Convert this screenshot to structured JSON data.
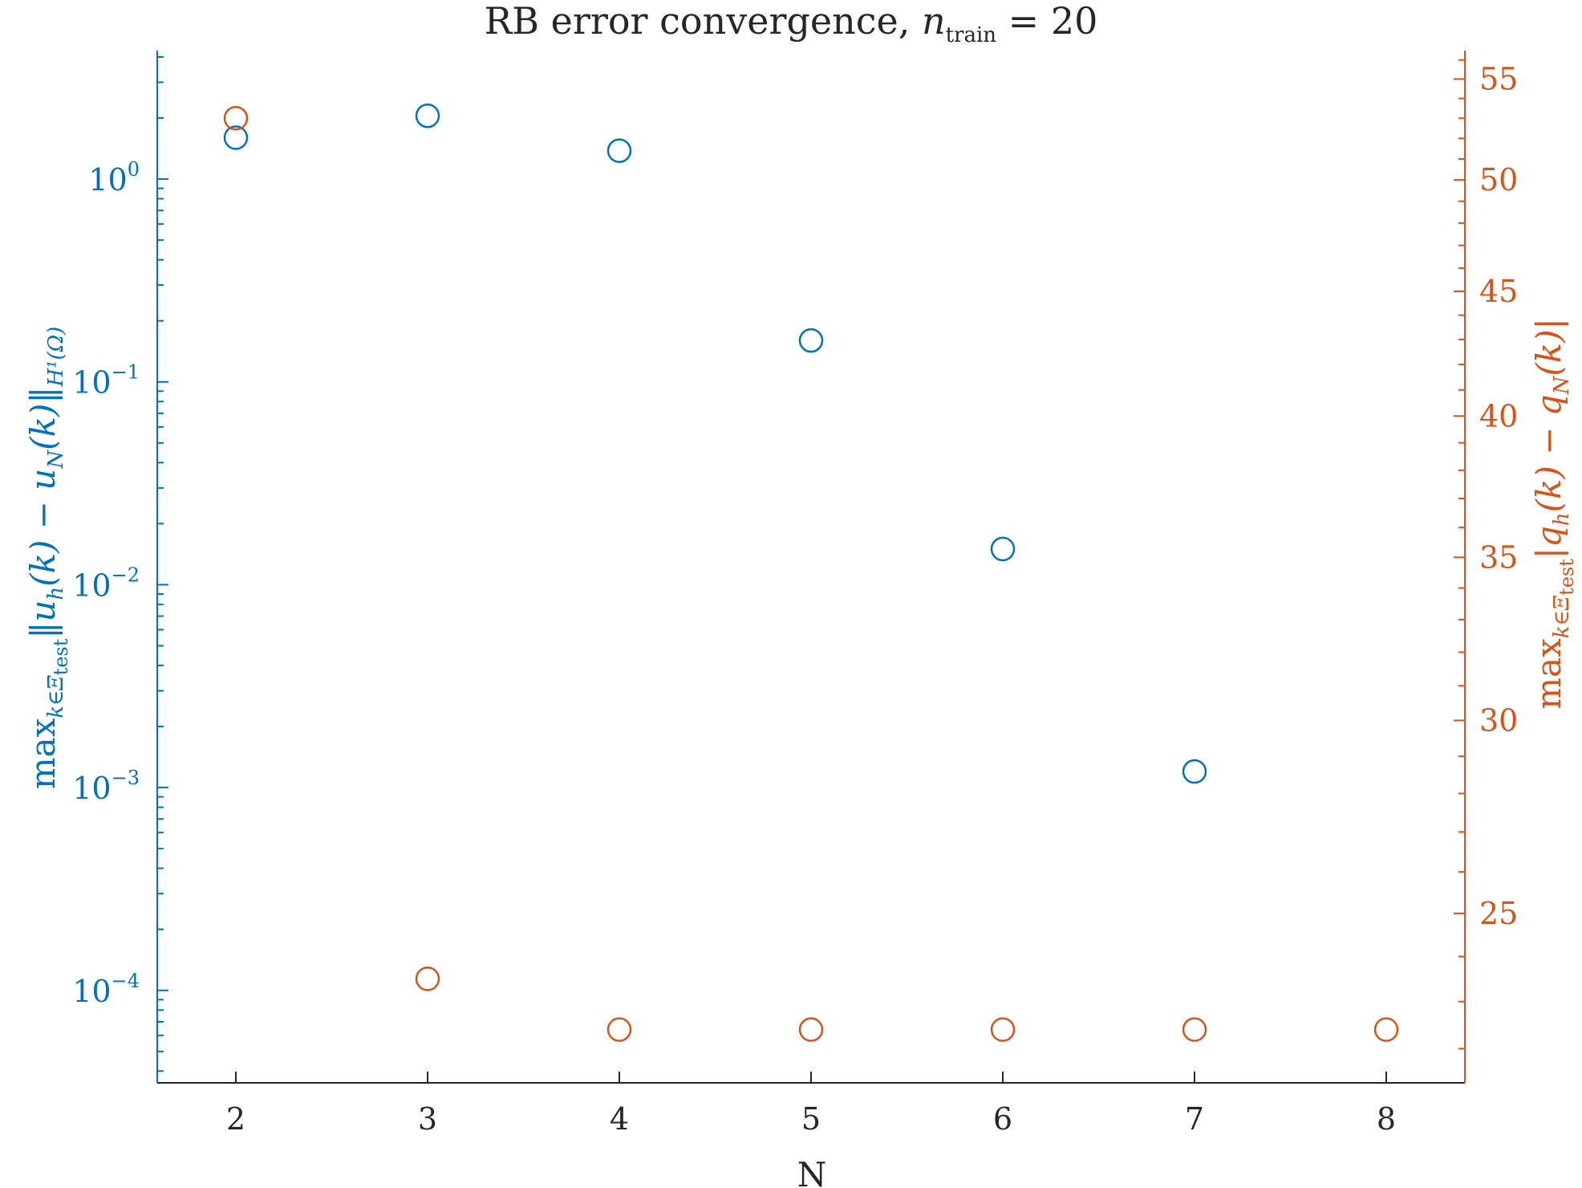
{
  "chart_data": {
    "type": "scatter",
    "title_main": "RB error convergence, ",
    "title_math_n": "n",
    "title_math_sub": "train",
    "title_math_rest": " = 20",
    "xlabel": "N",
    "x_ticks": [
      2,
      3,
      4,
      5,
      6,
      7,
      8
    ],
    "xlim": [
      1.59,
      8.41
    ],
    "left_axis": {
      "scale": "log",
      "ylim": [
        3.5e-05,
        4.3
      ],
      "color": "#0072BD",
      "tick_labels": [
        {
          "value": 1,
          "base": "10",
          "exp": "0"
        },
        {
          "value": 0.1,
          "base": "10",
          "exp": "−1"
        },
        {
          "value": 0.01,
          "base": "10",
          "exp": "−2"
        },
        {
          "value": 0.001,
          "base": "10",
          "exp": "−3"
        },
        {
          "value": 0.0001,
          "base": "10",
          "exp": "−4"
        }
      ],
      "label_max": "max",
      "label_sub": "k∈Ξ",
      "label_subsub": "test",
      "label_body": "‖u",
      "label_h": "h",
      "label_mid": "(k) − u",
      "label_N": "N",
      "label_end": "(k)‖",
      "label_norm": "H¹(Ω)"
    },
    "right_axis": {
      "scale": "log",
      "ylim": [
        21.3,
        56.5
      ],
      "color": "#D95319",
      "major_ticks": [
        25,
        30,
        35,
        40,
        45,
        50,
        55
      ],
      "tick_labels": [
        "25",
        "30",
        "35",
        "40",
        "45",
        "50",
        "55"
      ],
      "label_max": "max",
      "label_sub": "k∈Ξ",
      "label_subsub": "test",
      "label_body": "|q",
      "label_h": "h",
      "label_mid": "(k) − q",
      "label_N": "N",
      "label_end": "(k)|"
    },
    "series": [
      {
        "axis": "left",
        "marker": "circle-open",
        "color": "#0072BD",
        "x": [
          2,
          3,
          4,
          5,
          6,
          7
        ],
        "y": [
          1.6,
          2.05,
          1.38,
          0.16,
          0.015,
          0.0012
        ]
      },
      {
        "axis": "right",
        "marker": "circle-open",
        "color": "#D95319",
        "x": [
          2,
          3,
          4,
          5,
          6,
          7,
          8
        ],
        "y": [
          53.0,
          23.5,
          22.4,
          22.4,
          22.4,
          22.4,
          22.4
        ]
      }
    ],
    "grid": false,
    "legend": "none"
  }
}
